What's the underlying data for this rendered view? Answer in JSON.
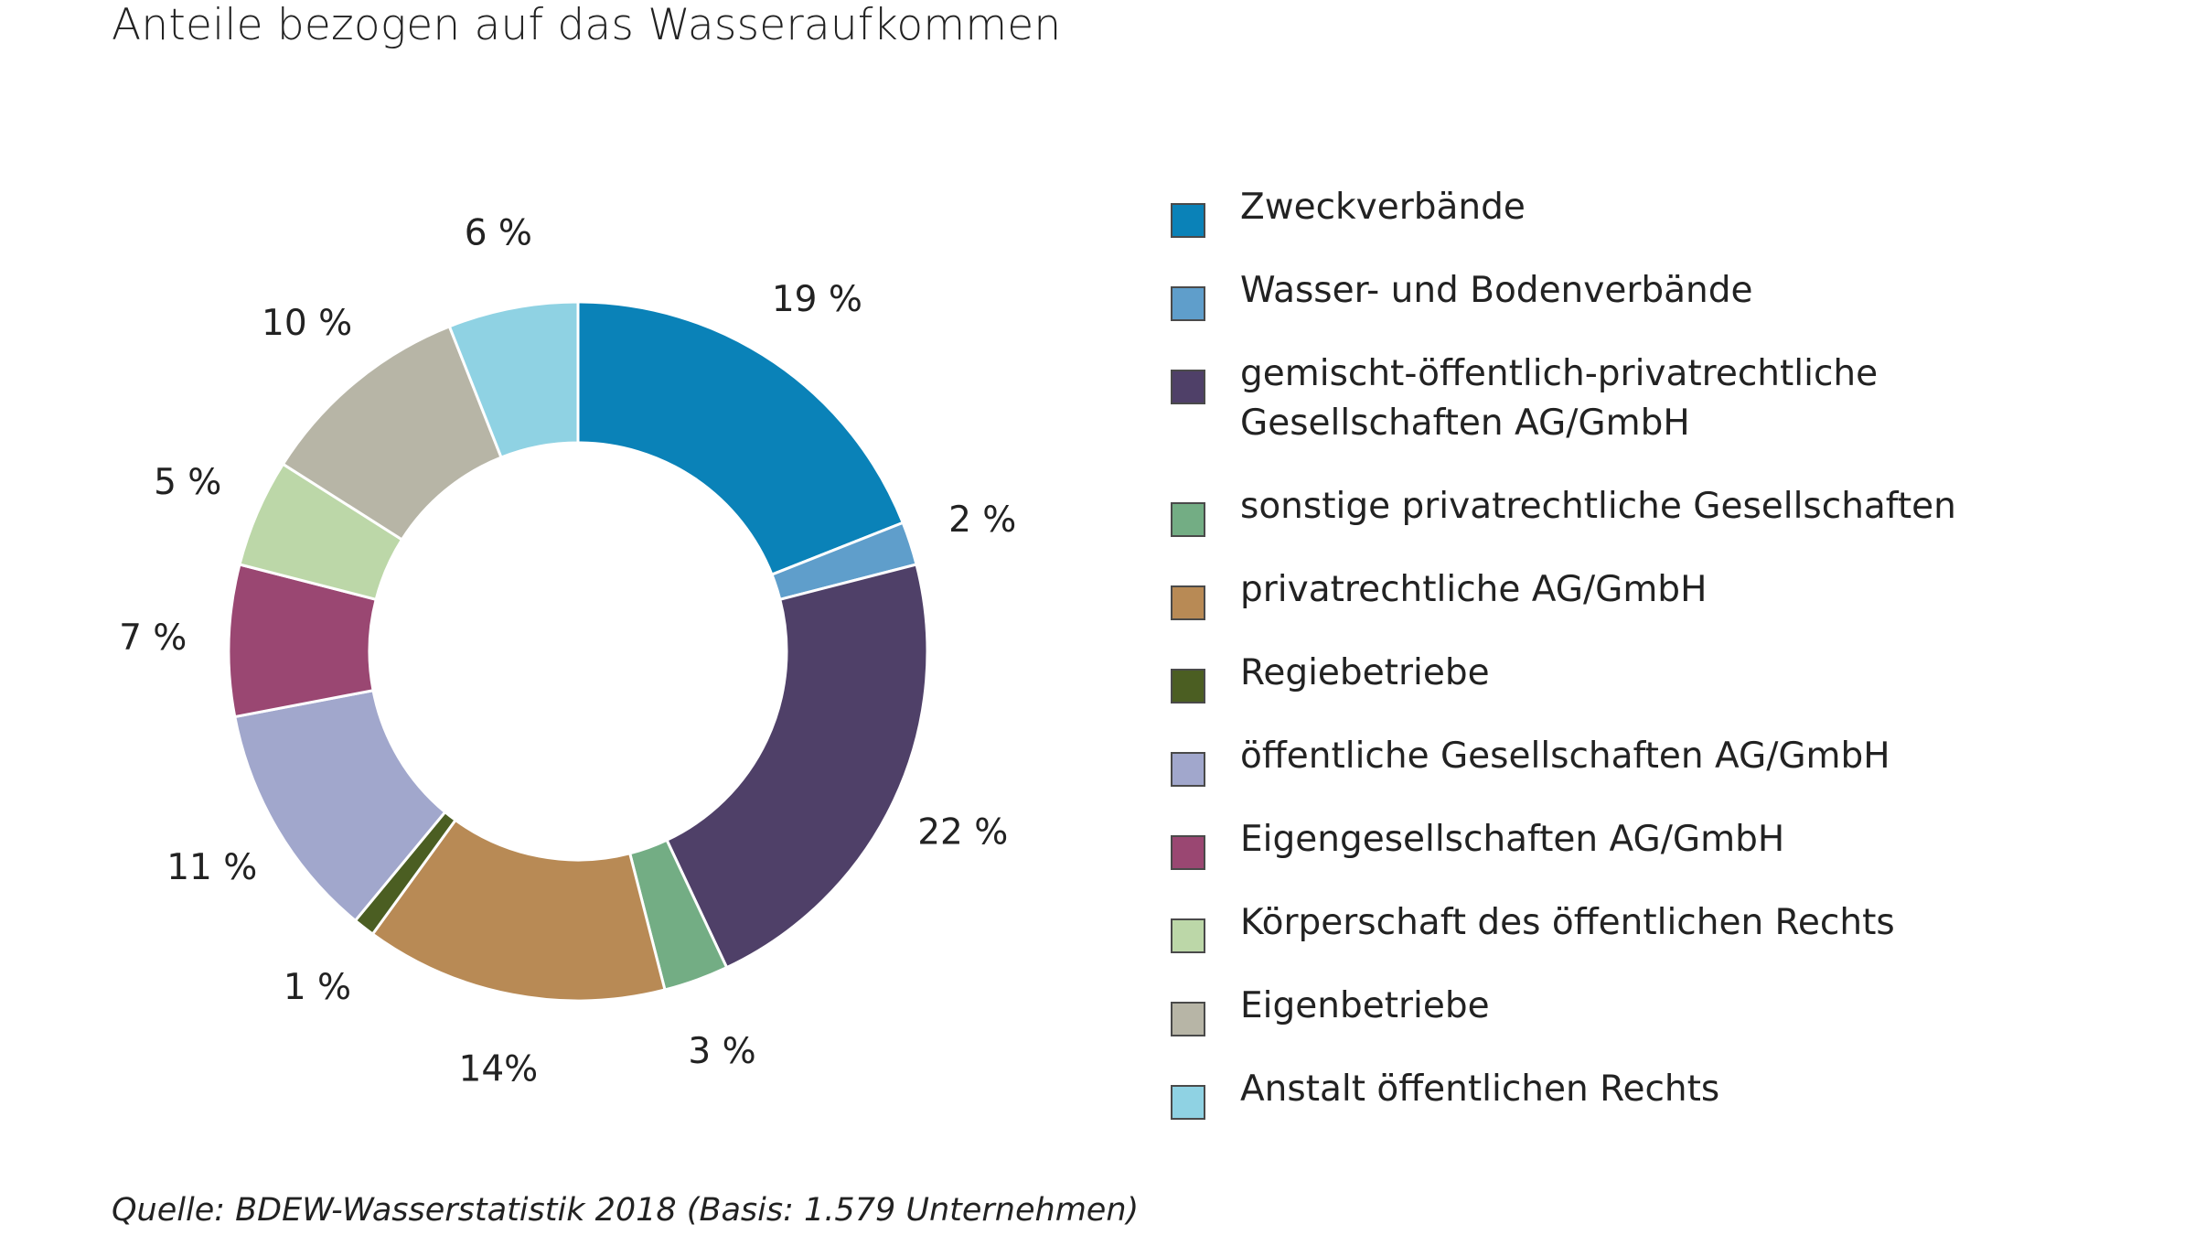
{
  "title": "Anteile bezogen auf das Wasseraufkommen",
  "source": "Quelle: BDEW-Wasserstatistik 2018 (Basis: 1.579 Unternehmen)",
  "chart_data": {
    "type": "pie",
    "variant": "donut",
    "title": "Anteile bezogen auf das Wasseraufkommen",
    "unit": "%",
    "legend_position": "right",
    "slices": [
      {
        "name": "Zweckverbände",
        "value": 19,
        "label": "19 %",
        "color": "#0a82b8"
      },
      {
        "name": "Wasser- und Bodenverbände",
        "value": 2,
        "label": "2 %",
        "color": "#5f9ecb"
      },
      {
        "name": "gemischt-öffentlich-privatrechtliche Gesellschaften AG/GmbH",
        "value": 22,
        "label": "22 %",
        "color": "#4f4068"
      },
      {
        "name": "sonstige privatrechtliche Gesellschaften",
        "value": 3,
        "label": "3 %",
        "color": "#73ad84"
      },
      {
        "name": "privatrechtliche AG/GmbH",
        "value": 14,
        "label": "14%",
        "color": "#b88a55"
      },
      {
        "name": "Regiebetriebe",
        "value": 1,
        "label": "1 %",
        "color": "#4b5e22"
      },
      {
        "name": "öffentliche Gesellschaften AG/GmbH",
        "value": 11,
        "label": "11 %",
        "color": "#a1a7cc"
      },
      {
        "name": "Eigengesellschaften AG/GmbH",
        "value": 7,
        "label": "7 %",
        "color": "#9a4772"
      },
      {
        "name": "Körperschaft des öffentlichen Rechts",
        "value": 5,
        "label": "5 %",
        "color": "#bcd7a8"
      },
      {
        "name": "Eigenbetriebe",
        "value": 10,
        "label": "10 %",
        "color": "#b7b5a6"
      },
      {
        "name": "Anstalt öffentlichen Rechts",
        "value": 6,
        "label": "6 %",
        "color": "#8fd2e3"
      }
    ]
  }
}
